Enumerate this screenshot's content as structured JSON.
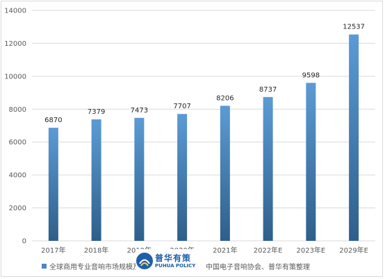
{
  "chart_data": {
    "type": "bar",
    "categories": [
      "2017年",
      "2018年",
      "2019年",
      "2020年",
      "2021年",
      "2022年E",
      "2023年E",
      "2029年E"
    ],
    "series": [
      {
        "name": "全球商用专业音响市场规模及预测",
        "values": [
          6870,
          7379,
          7473,
          7707,
          8206,
          8737,
          9598,
          12537
        ]
      }
    ],
    "ylim": [
      0,
      14000
    ],
    "yticks": [
      0,
      2000,
      4000,
      6000,
      8000,
      10000,
      12000,
      14000
    ],
    "grid": true,
    "legend_position": "bottom",
    "title": "",
    "xlabel": "",
    "ylabel": ""
  },
  "legend": {
    "series_label": "全球商用专业音响市场规模及预测",
    "source_label": "资料来源：中国电子音响协会、普华有策整理"
  },
  "logo": {
    "cn": "普华有策",
    "en": "PUHUA POLICY"
  },
  "colors": {
    "bar_top": "#5b9bd5",
    "bar_bottom": "#2e5f8a",
    "legend_series": "#4a86c5",
    "legend_source": "#a5b8d8",
    "grid": "#d9d9d9",
    "logo": "#1f5fa8"
  }
}
